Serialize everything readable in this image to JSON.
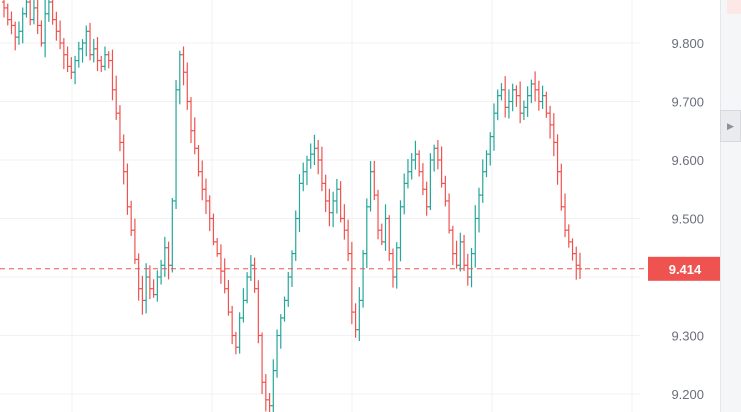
{
  "chart_data": {
    "type": "ohlc",
    "title": "",
    "xlabel": "",
    "ylabel": "",
    "ylim": [
      9.17,
      9.87
    ],
    "y_ticks": [
      "9.800",
      "9.700",
      "9.600",
      "9.500",
      "9.300",
      "9.200"
    ],
    "y_tick_values": [
      9.8,
      9.7,
      9.6,
      9.5,
      9.3,
      9.2
    ],
    "grid": true,
    "last_price": 9.414,
    "last_price_label": "9.414",
    "up_color": "#26a69a",
    "down_color": "#ef5350",
    "closes": [
      9.86,
      9.84,
      9.83,
      9.81,
      9.82,
      9.85,
      9.87,
      9.84,
      9.86,
      9.83,
      9.8,
      9.85,
      9.87,
      9.84,
      9.82,
      9.8,
      9.78,
      9.76,
      9.75,
      9.77,
      9.79,
      9.8,
      9.82,
      9.78,
      9.79,
      9.77,
      9.76,
      9.78,
      9.77,
      9.72,
      9.68,
      9.63,
      9.58,
      9.52,
      9.48,
      9.43,
      9.38,
      9.36,
      9.4,
      9.38,
      9.37,
      9.4,
      9.42,
      9.45,
      9.42,
      9.53,
      9.72,
      9.78,
      9.75,
      9.7,
      9.65,
      9.62,
      9.58,
      9.55,
      9.53,
      9.5,
      9.46,
      9.44,
      9.41,
      9.38,
      9.34,
      9.3,
      9.28,
      9.33,
      9.36,
      9.4,
      9.42,
      9.38,
      9.3,
      9.22,
      9.19,
      9.18,
      9.24,
      9.3,
      9.33,
      9.36,
      9.4,
      9.44,
      9.5,
      9.56,
      9.58,
      9.6,
      9.61,
      9.62,
      9.6,
      9.56,
      9.53,
      9.51,
      9.53,
      9.55,
      9.5,
      9.48,
      9.44,
      9.34,
      9.31,
      9.36,
      9.44,
      9.52,
      9.58,
      9.54,
      9.48,
      9.46,
      9.5,
      9.44,
      9.4,
      9.45,
      9.52,
      9.56,
      9.58,
      9.6,
      9.61,
      9.58,
      9.55,
      9.52,
      9.6,
      9.62,
      9.6,
      9.56,
      9.53,
      9.48,
      9.44,
      9.42,
      9.46,
      9.42,
      9.4,
      9.44,
      9.5,
      9.54,
      9.58,
      9.61,
      9.64,
      9.68,
      9.71,
      9.72,
      9.69,
      9.7,
      9.72,
      9.71,
      9.68,
      9.69,
      9.71,
      9.73,
      9.72,
      9.7,
      9.71,
      9.68,
      9.66,
      9.63,
      9.58,
      9.52,
      9.48,
      9.46,
      9.44,
      9.42,
      9.414
    ]
  },
  "ui": {
    "collapse_icon": "chevron-right-icon"
  }
}
